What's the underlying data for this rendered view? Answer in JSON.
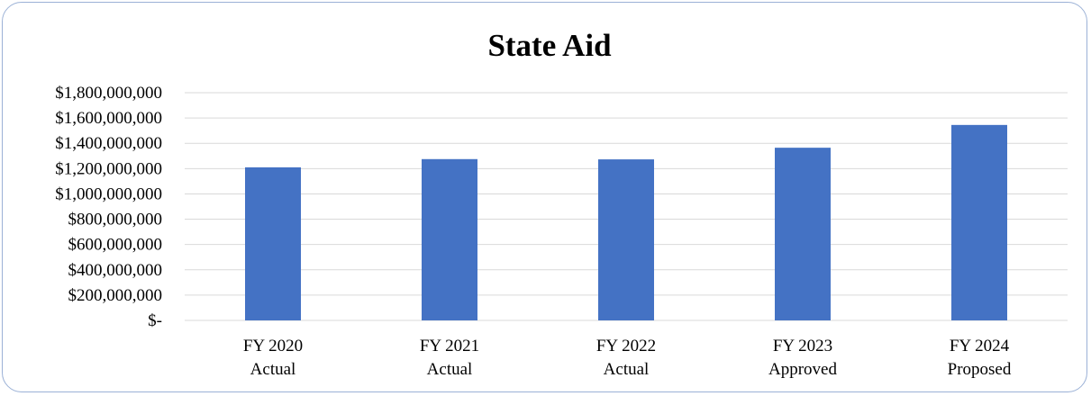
{
  "chart_data": {
    "type": "bar",
    "title": "State Aid",
    "xlabel": "",
    "ylabel": "",
    "categories": [
      [
        "FY 2020",
        "Actual"
      ],
      [
        "FY 2021",
        "Actual"
      ],
      [
        "FY 2022",
        "Actual"
      ],
      [
        "FY 2023",
        "Approved"
      ],
      [
        "FY 2024",
        "Proposed"
      ]
    ],
    "values": [
      1210000000,
      1275000000,
      1273000000,
      1365000000,
      1545000000
    ],
    "ylim": [
      0,
      1800000000
    ],
    "yticks": [
      "$-",
      "$200,000,000",
      "$400,000,000",
      "$600,000,000",
      "$800,000,000",
      "$1,000,000,000",
      "$1,200,000,000",
      "$1,400,000,000",
      "$1,600,000,000",
      "$1,800,000,000"
    ],
    "grid": true,
    "legend": "none",
    "bar_color": "#4472c4"
  }
}
